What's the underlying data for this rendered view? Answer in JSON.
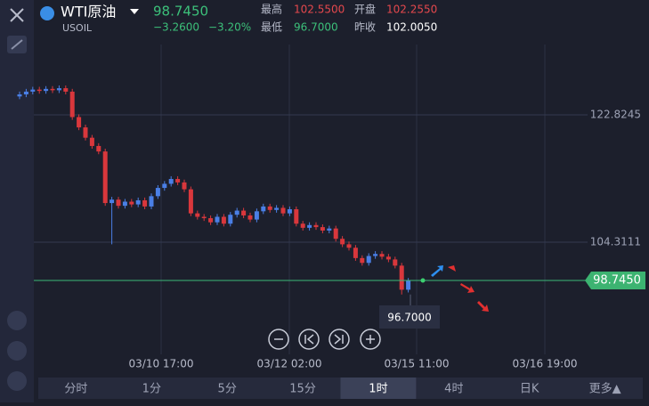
{
  "header": {
    "symbol": "WTI原油",
    "code": "USOIL",
    "price": "98.7450",
    "change": "−3.2600",
    "change_pct": "−3.20%",
    "high_label": "最高",
    "high": "102.5500",
    "open_label": "开盘",
    "open": "102.2550",
    "low_label": "最低",
    "low": "96.7000",
    "prev_label": "昨收",
    "prev": "102.0050"
  },
  "chart_data": {
    "type": "candlestick",
    "open": [
      125.5,
      125.8,
      126.2,
      126.5,
      126.3,
      126.6,
      126.4,
      126.7,
      126.2,
      122.5,
      121.0,
      119.5,
      118.3,
      117.5,
      110.0,
      110.5,
      109.6,
      110.2,
      109.8,
      110.4,
      109.5,
      111.0,
      112.2,
      112.8,
      113.5,
      113.0,
      112.0,
      108.5,
      108.0,
      107.8,
      107.2,
      108.0,
      107.0,
      108.3,
      108.9,
      108.2,
      107.6,
      108.8,
      109.5,
      109.0,
      109.3,
      108.5,
      109.1,
      107.0,
      106.4,
      106.8,
      106.5,
      106.0,
      106.3,
      104.8,
      104.0,
      103.5,
      102.0,
      101.3,
      102.3,
      102.6,
      102.2,
      101.8,
      100.9,
      97.4
    ],
    "high": [
      126.2,
      126.6,
      126.9,
      126.9,
      127.0,
      127.0,
      127.1,
      127.1,
      126.6,
      122.9,
      121.4,
      119.9,
      118.7,
      117.9,
      110.9,
      110.9,
      110.6,
      110.6,
      110.8,
      110.8,
      111.4,
      112.6,
      113.2,
      113.9,
      113.9,
      113.4,
      112.4,
      108.9,
      108.4,
      108.2,
      108.4,
      108.4,
      108.7,
      109.3,
      109.3,
      108.6,
      109.2,
      109.9,
      109.9,
      109.7,
      109.7,
      109.5,
      109.5,
      107.4,
      107.2,
      107.2,
      106.9,
      106.7,
      106.7,
      105.2,
      104.4,
      103.9,
      102.4,
      102.7,
      103.0,
      103.0,
      102.6,
      102.2,
      101.3,
      99.1
    ],
    "low": [
      125.1,
      125.4,
      125.8,
      125.9,
      125.9,
      126.0,
      126.0,
      125.8,
      122.1,
      120.6,
      119.1,
      117.9,
      117.1,
      109.6,
      104.0,
      109.2,
      109.2,
      109.4,
      109.4,
      109.1,
      109.1,
      110.6,
      111.8,
      112.4,
      112.6,
      111.6,
      108.1,
      107.6,
      107.4,
      106.8,
      106.8,
      106.6,
      106.6,
      107.9,
      107.8,
      107.2,
      107.2,
      108.4,
      108.6,
      108.6,
      108.1,
      108.1,
      106.6,
      106.0,
      106.0,
      106.1,
      105.6,
      105.6,
      104.4,
      103.6,
      103.1,
      101.6,
      100.9,
      100.9,
      101.9,
      101.8,
      101.4,
      100.5,
      96.7,
      97.0
    ],
    "close": [
      125.8,
      126.2,
      126.5,
      126.3,
      126.6,
      126.4,
      126.7,
      126.2,
      122.5,
      121.0,
      119.5,
      118.3,
      117.5,
      110.0,
      110.5,
      109.6,
      110.2,
      109.8,
      110.4,
      109.5,
      111.0,
      112.2,
      112.8,
      113.5,
      113.0,
      112.0,
      108.5,
      108.0,
      107.8,
      107.2,
      108.0,
      107.0,
      108.3,
      108.9,
      108.2,
      107.6,
      108.8,
      109.5,
      109.0,
      109.3,
      108.5,
      109.1,
      107.0,
      106.4,
      106.8,
      106.5,
      106.0,
      106.3,
      104.8,
      104.0,
      103.5,
      102.0,
      101.3,
      102.3,
      102.6,
      102.2,
      101.8,
      100.9,
      97.4,
      98.745
    ],
    "up_color": "#4a7fe6",
    "down_color": "#d9373c",
    "ylim": [
      88.387,
      131.757
    ],
    "yticks": [
      104.3111,
      122.8245
    ],
    "grid": true,
    "x_labels": [
      "03/10 17:00",
      "03/12 02:00",
      "03/15 11:00",
      "03/16 19:00"
    ],
    "last_price": {
      "value": 98.745,
      "label": "98.7450"
    },
    "low_marker": {
      "value": 96.7,
      "label": "96.7000"
    }
  },
  "tabs": [
    "分时",
    "1分",
    "5分",
    "15分",
    "1时",
    "4时",
    "日K",
    "更多▲"
  ],
  "active_tab": "1时"
}
